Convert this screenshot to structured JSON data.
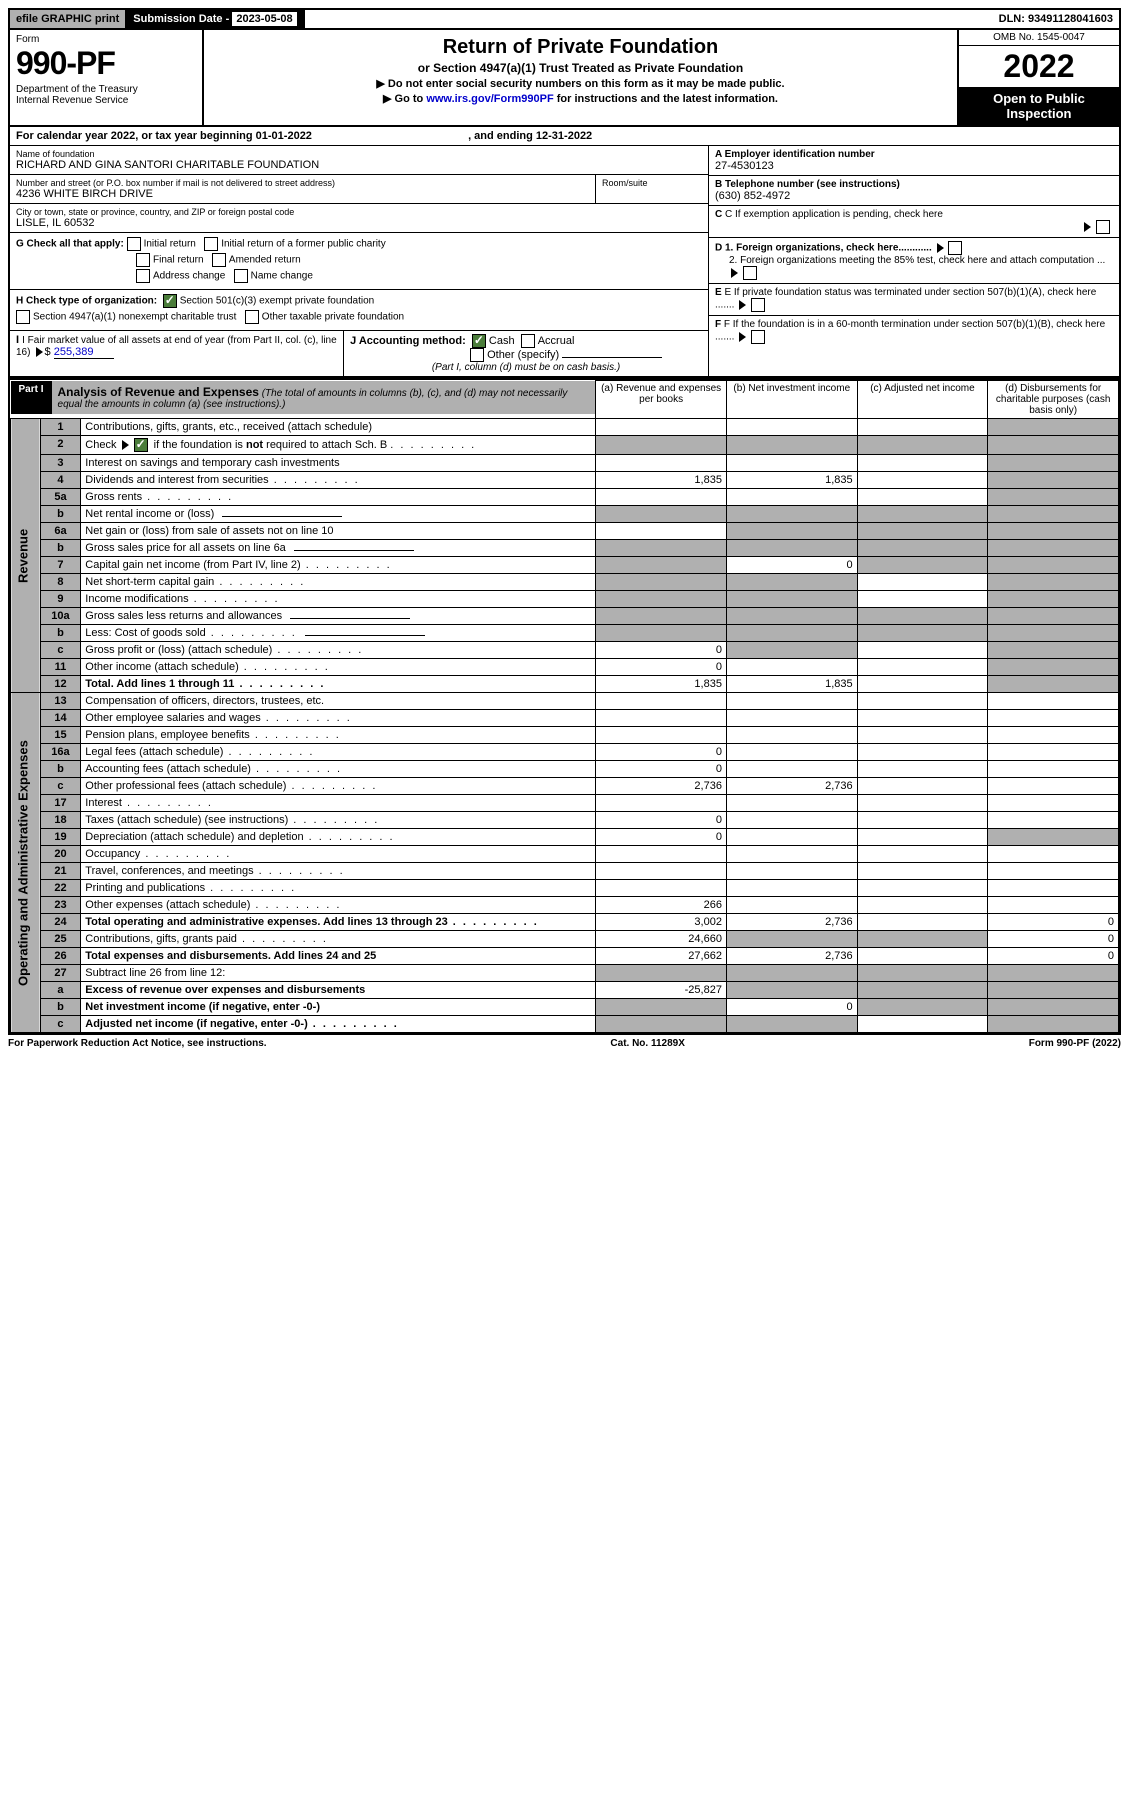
{
  "top": {
    "efile": "efile GRAPHIC print",
    "sub_label": "Submission Date - ",
    "sub_date": "2023-05-08",
    "dln": "DLN: 93491128041603"
  },
  "header": {
    "form_label": "Form",
    "form_no": "990-PF",
    "dept": "Department of the Treasury\nInternal Revenue Service",
    "title": "Return of Private Foundation",
    "subtitle": "or Section 4947(a)(1) Trust Treated as Private Foundation",
    "instr1": "▶ Do not enter social security numbers on this form as it may be made public.",
    "instr2_pre": "▶ Go to ",
    "instr2_link": "www.irs.gov/Form990PF",
    "instr2_post": " for instructions and the latest information.",
    "omb": "OMB No. 1545-0047",
    "year": "2022",
    "open": "Open to Public Inspection"
  },
  "cal": {
    "text_pre": "For calendar year 2022, or tax year beginning ",
    "begin": "01-01-2022",
    "text_mid": " , and ending ",
    "end": "12-31-2022"
  },
  "entity": {
    "name_label": "Name of foundation",
    "name": "RICHARD AND GINA SANTORI CHARITABLE FOUNDATION",
    "addr_label": "Number and street (or P.O. box number if mail is not delivered to street address)",
    "addr": "4236 WHITE BIRCH DRIVE",
    "room_label": "Room/suite",
    "city_label": "City or town, state or province, country, and ZIP or foreign postal code",
    "city": "LISLE, IL  60532",
    "ein_label": "A Employer identification number",
    "ein": "27-4530123",
    "tel_label": "B Telephone number (see instructions)",
    "tel": "(630) 852-4972",
    "c_label": "C If exemption application is pending, check here"
  },
  "g": {
    "label": "G Check all that apply:",
    "opts": [
      "Initial return",
      "Initial return of a former public charity",
      "Final return",
      "Amended return",
      "Address change",
      "Name change"
    ]
  },
  "h": {
    "label": "H Check type of organization:",
    "opt1": "Section 501(c)(3) exempt private foundation",
    "opt2": "Section 4947(a)(1) nonexempt charitable trust",
    "opt3": "Other taxable private foundation"
  },
  "i": {
    "label": "I Fair market value of all assets at end of year (from Part II, col. (c), line 16)",
    "val": "255,389"
  },
  "j": {
    "label": "J Accounting method:",
    "cash": "Cash",
    "accrual": "Accrual",
    "other": "Other (specify)",
    "note": "(Part I, column (d) must be on cash basis.)"
  },
  "d": {
    "l1": "D 1. Foreign organizations, check here............",
    "l2": "2. Foreign organizations meeting the 85% test, check here and attach computation ..."
  },
  "e": {
    "text": "E  If private foundation status was terminated under section 507(b)(1)(A), check here ......."
  },
  "f": {
    "text": "F  If the foundation is in a 60-month termination under section 507(b)(1)(B), check here ......."
  },
  "part1": {
    "label": "Part I",
    "title": "Analysis of Revenue and Expenses",
    "note": " (The total of amounts in columns (b), (c), and (d) may not necessarily equal the amounts in column (a) (see instructions).)",
    "cols": {
      "a": "(a) Revenue and expenses per books",
      "b": "(b) Net investment income",
      "c": "(c) Adjusted net income",
      "d": "(d) Disbursements for charitable purposes (cash basis only)"
    }
  },
  "side": {
    "rev": "Revenue",
    "exp": "Operating and Administrative Expenses"
  },
  "rows": [
    {
      "n": "1",
      "d": "Contributions, gifts, grants, etc., received (attach schedule)",
      "a": "",
      "b": "",
      "c": "",
      "dcol": "",
      "sh_d": true,
      "sh_c": false
    },
    {
      "n": "2",
      "d": "Check ▶ ☑ if the foundation is not required to attach Sch. B",
      "dots": true,
      "a": "",
      "b": "",
      "c": "",
      "dcol": "",
      "sh_a": true,
      "sh_b": true,
      "sh_c": true,
      "sh_d": true
    },
    {
      "n": "3",
      "d": "Interest on savings and temporary cash investments",
      "a": "",
      "b": "",
      "c": "",
      "dcol": "",
      "sh_d": true
    },
    {
      "n": "4",
      "d": "Dividends and interest from securities",
      "dots": true,
      "a": "1,835",
      "b": "1,835",
      "c": "",
      "dcol": "",
      "sh_d": true
    },
    {
      "n": "5a",
      "d": "Gross rents",
      "dots": true,
      "a": "",
      "b": "",
      "c": "",
      "dcol": "",
      "sh_d": true
    },
    {
      "n": "b",
      "d": "Net rental income or (loss)",
      "inline": true,
      "a": "",
      "b": "",
      "c": "",
      "dcol": "",
      "sh_a": true,
      "sh_b": true,
      "sh_c": true,
      "sh_d": true
    },
    {
      "n": "6a",
      "d": "Net gain or (loss) from sale of assets not on line 10",
      "a": "",
      "b": "",
      "c": "",
      "dcol": "",
      "sh_b": true,
      "sh_c": true,
      "sh_d": true
    },
    {
      "n": "b",
      "d": "Gross sales price for all assets on line 6a",
      "inline": true,
      "a": "",
      "b": "",
      "c": "",
      "dcol": "",
      "sh_a": true,
      "sh_b": true,
      "sh_c": true,
      "sh_d": true
    },
    {
      "n": "7",
      "d": "Capital gain net income (from Part IV, line 2)",
      "dots": true,
      "a": "",
      "b": "0",
      "c": "",
      "dcol": "",
      "sh_a": true,
      "sh_c": true,
      "sh_d": true
    },
    {
      "n": "8",
      "d": "Net short-term capital gain",
      "dots": true,
      "a": "",
      "b": "",
      "c": "",
      "dcol": "",
      "sh_a": true,
      "sh_b": true,
      "sh_d": true
    },
    {
      "n": "9",
      "d": "Income modifications",
      "dots": true,
      "a": "",
      "b": "",
      "c": "",
      "dcol": "",
      "sh_a": true,
      "sh_b": true,
      "sh_d": true
    },
    {
      "n": "10a",
      "d": "Gross sales less returns and allowances",
      "inline": true,
      "a": "",
      "b": "",
      "c": "",
      "dcol": "",
      "sh_a": true,
      "sh_b": true,
      "sh_c": true,
      "sh_d": true
    },
    {
      "n": "b",
      "d": "Less: Cost of goods sold",
      "dots": true,
      "inline": true,
      "a": "",
      "b": "",
      "c": "",
      "dcol": "",
      "sh_a": true,
      "sh_b": true,
      "sh_c": true,
      "sh_d": true
    },
    {
      "n": "c",
      "d": "Gross profit or (loss) (attach schedule)",
      "dots": true,
      "a": "0",
      "b": "",
      "c": "",
      "dcol": "",
      "sh_b": true,
      "sh_d": true
    },
    {
      "n": "11",
      "d": "Other income (attach schedule)",
      "dots": true,
      "a": "0",
      "b": "",
      "c": "",
      "dcol": "",
      "sh_d": true
    },
    {
      "n": "12",
      "d": "Total. Add lines 1 through 11",
      "dots": true,
      "bold": true,
      "a": "1,835",
      "b": "1,835",
      "c": "",
      "dcol": "",
      "sh_d": true
    },
    {
      "n": "13",
      "d": "Compensation of officers, directors, trustees, etc.",
      "a": "",
      "b": "",
      "c": "",
      "dcol": ""
    },
    {
      "n": "14",
      "d": "Other employee salaries and wages",
      "dots": true,
      "a": "",
      "b": "",
      "c": "",
      "dcol": ""
    },
    {
      "n": "15",
      "d": "Pension plans, employee benefits",
      "dots": true,
      "a": "",
      "b": "",
      "c": "",
      "dcol": ""
    },
    {
      "n": "16a",
      "d": "Legal fees (attach schedule)",
      "dots": true,
      "a": "0",
      "b": "",
      "c": "",
      "dcol": ""
    },
    {
      "n": "b",
      "d": "Accounting fees (attach schedule)",
      "dots": true,
      "a": "0",
      "b": "",
      "c": "",
      "dcol": ""
    },
    {
      "n": "c",
      "d": "Other professional fees (attach schedule)",
      "dots": true,
      "a": "2,736",
      "b": "2,736",
      "c": "",
      "dcol": ""
    },
    {
      "n": "17",
      "d": "Interest",
      "dots": true,
      "a": "",
      "b": "",
      "c": "",
      "dcol": ""
    },
    {
      "n": "18",
      "d": "Taxes (attach schedule) (see instructions)",
      "dots": true,
      "a": "0",
      "b": "",
      "c": "",
      "dcol": ""
    },
    {
      "n": "19",
      "d": "Depreciation (attach schedule) and depletion",
      "dots": true,
      "a": "0",
      "b": "",
      "c": "",
      "dcol": "",
      "sh_d": true
    },
    {
      "n": "20",
      "d": "Occupancy",
      "dots": true,
      "a": "",
      "b": "",
      "c": "",
      "dcol": ""
    },
    {
      "n": "21",
      "d": "Travel, conferences, and meetings",
      "dots": true,
      "a": "",
      "b": "",
      "c": "",
      "dcol": ""
    },
    {
      "n": "22",
      "d": "Printing and publications",
      "dots": true,
      "a": "",
      "b": "",
      "c": "",
      "dcol": ""
    },
    {
      "n": "23",
      "d": "Other expenses (attach schedule)",
      "dots": true,
      "a": "266",
      "b": "",
      "c": "",
      "dcol": ""
    },
    {
      "n": "24",
      "d": "Total operating and administrative expenses. Add lines 13 through 23",
      "dots": true,
      "bold": true,
      "a": "3,002",
      "b": "2,736",
      "c": "",
      "dcol": "0"
    },
    {
      "n": "25",
      "d": "Contributions, gifts, grants paid",
      "dots": true,
      "a": "24,660",
      "b": "",
      "c": "",
      "dcol": "0",
      "sh_b": true,
      "sh_c": true
    },
    {
      "n": "26",
      "d": "Total expenses and disbursements. Add lines 24 and 25",
      "bold": true,
      "a": "27,662",
      "b": "2,736",
      "c": "",
      "dcol": "0"
    },
    {
      "n": "27",
      "d": "Subtract line 26 from line 12:",
      "a": "",
      "b": "",
      "c": "",
      "dcol": "",
      "sh_a": true,
      "sh_b": true,
      "sh_c": true,
      "sh_d": true
    },
    {
      "n": "a",
      "d": "Excess of revenue over expenses and disbursements",
      "bold": true,
      "a": "-25,827",
      "b": "",
      "c": "",
      "dcol": "",
      "sh_b": true,
      "sh_c": true,
      "sh_d": true
    },
    {
      "n": "b",
      "d": "Net investment income (if negative, enter -0-)",
      "bold": true,
      "a": "",
      "b": "0",
      "c": "",
      "dcol": "",
      "sh_a": true,
      "sh_c": true,
      "sh_d": true
    },
    {
      "n": "c",
      "d": "Adjusted net income (if negative, enter -0-)",
      "dots": true,
      "bold": true,
      "a": "",
      "b": "",
      "c": "",
      "dcol": "",
      "sh_a": true,
      "sh_b": true,
      "sh_d": true
    }
  ],
  "footer": {
    "left": "For Paperwork Reduction Act Notice, see instructions.",
    "mid": "Cat. No. 11289X",
    "right": "Form 990-PF (2022)"
  }
}
